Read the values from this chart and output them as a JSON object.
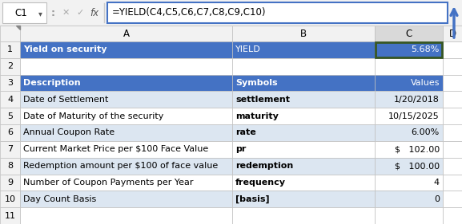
{
  "formula_bar_text": "=YIELD(C4,C5,C6,C7,C8,C9,C10)",
  "cell_ref": "C1",
  "header_bg": "#4472C4",
  "header_fg": "#FFFFFF",
  "alt_row_bg": "#DCE6F1",
  "normal_row_bg": "#FFFFFF",
  "grid_color": "#B8B8B8",
  "selected_cell_border": "#375623",
  "col_header_bg": "#F2F2F2",
  "col_header_selected_bg": "#D9D9D9",
  "formula_border": "#4472C4",
  "arrow_color": "#4472C4",
  "rows": [
    {
      "A": "Yield on security",
      "B": "YIELD",
      "C": "5.68%",
      "A_bold": true,
      "B_bold": false,
      "C_bold": false,
      "bg": "#4472C4",
      "fg": "#FFFFFF",
      "C_align": "right",
      "B_align": "left",
      "selected_C": true
    },
    {
      "A": "",
      "B": "",
      "C": "",
      "bg": "#FFFFFF",
      "fg": "#000000"
    },
    {
      "A": "Description",
      "B": "Symbols",
      "C": "Values",
      "A_bold": true,
      "B_bold": true,
      "C_bold": true,
      "bg": "#4472C4",
      "fg": "#FFFFFF",
      "C_align": "right",
      "B_align": "left"
    },
    {
      "A": "Date of Settlement",
      "B": "settlement",
      "C": "1/20/2018",
      "bg": "#DCE6F1",
      "fg": "#000000",
      "C_align": "right",
      "B_bold": true
    },
    {
      "A": "Date of Maturity of the security",
      "B": "maturity",
      "C": "10/15/2025",
      "bg": "#FFFFFF",
      "fg": "#000000",
      "C_align": "right",
      "B_bold": true
    },
    {
      "A": "Annual Coupon Rate",
      "B": "rate",
      "C": "6.00%",
      "bg": "#DCE6F1",
      "fg": "#000000",
      "C_align": "right",
      "B_bold": true
    },
    {
      "A": "Current Market Price per $100 Face Value",
      "B": "pr",
      "C": "$   102.00",
      "bg": "#FFFFFF",
      "fg": "#000000",
      "C_align": "right",
      "B_bold": true
    },
    {
      "A": "Redemption amount per $100 of face value",
      "B": "redemption",
      "C": "$   100.00",
      "bg": "#DCE6F1",
      "fg": "#000000",
      "C_align": "right",
      "B_bold": true
    },
    {
      "A": "Number of Coupon Payments per Year",
      "B": "frequency",
      "C": "4",
      "bg": "#FFFFFF",
      "fg": "#000000",
      "C_align": "right",
      "B_bold": true
    },
    {
      "A": "Day Count Basis",
      "B": "[basis]",
      "C": "0",
      "bg": "#DCE6F1",
      "fg": "#000000",
      "C_align": "right",
      "B_bold": true
    },
    {
      "A": "",
      "B": "",
      "C": "",
      "bg": "#FFFFFF",
      "fg": "#000000"
    }
  ],
  "figsize": [
    5.77,
    2.81
  ],
  "dpi": 100
}
